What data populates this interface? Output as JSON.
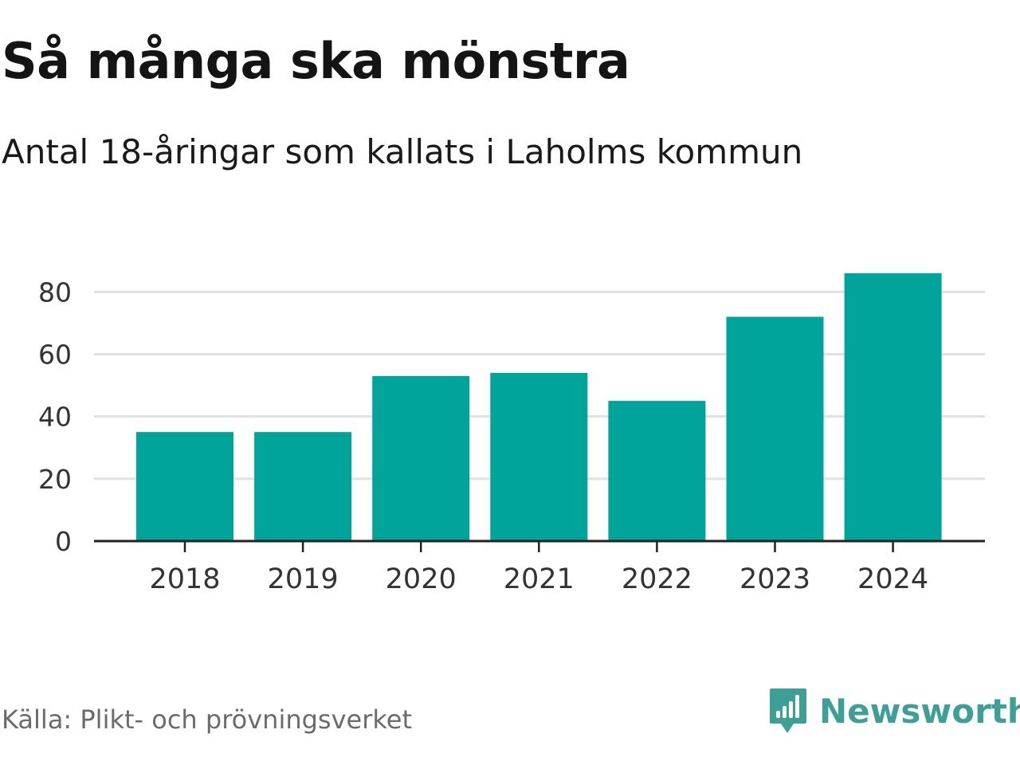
{
  "header": {
    "title": "Så många ska mönstra",
    "subtitle": "Antal 18-åringar som kallats i Laholms kommun"
  },
  "footer": {
    "source": "Källa: Plikt- och prövningsverket",
    "brand": "Newsworthy",
    "brand_icon": "newsworthy-logo-icon"
  },
  "colors": {
    "bar": "#00a49a",
    "grid": "#e1e1e1",
    "axis": "#222222",
    "brand": "#3d9f95"
  },
  "chart_data": {
    "type": "bar",
    "title": "Så många ska mönstra",
    "subtitle": "Antal 18-åringar som kallats i Laholms kommun",
    "xlabel": "",
    "ylabel": "",
    "categories": [
      "2018",
      "2019",
      "2020",
      "2021",
      "2022",
      "2023",
      "2024"
    ],
    "values": [
      35,
      35,
      53,
      54,
      45,
      72,
      86
    ],
    "yticks": [
      0,
      20,
      40,
      60,
      80
    ],
    "ylim": [
      0,
      88
    ],
    "grid": true,
    "legend": "none"
  }
}
